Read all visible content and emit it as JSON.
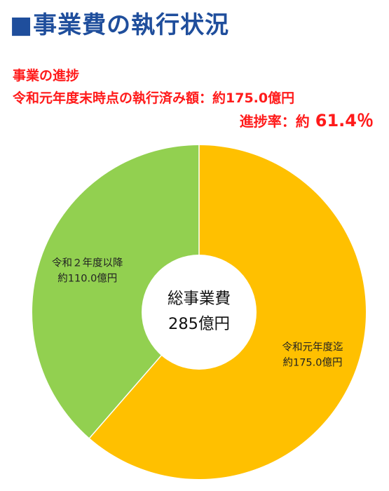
{
  "header": {
    "title": "■事業費の執行状況"
  },
  "progress": {
    "heading": "事業の進捗",
    "executed_line": "令和元年度末時点の執行済み額：約175.0億円",
    "rate_label": "進捗率：約",
    "rate_value": "61.4％"
  },
  "chart_data": {
    "type": "pie",
    "donut": true,
    "center_label": [
      "総事業費",
      "285億円"
    ],
    "total": 285,
    "unit": "億円",
    "slices": [
      {
        "name": "令和元年度迄",
        "value": 175.0,
        "label": "約175.0億円",
        "color": "#ffc000"
      },
      {
        "name": "令和２年度以降",
        "value": 110.0,
        "label": "約110.0億円",
        "color": "#92d050"
      }
    ]
  },
  "colors": {
    "title": "#1f4e9c",
    "progress_text": "#ff1a1a",
    "slice_executed": "#ffc000",
    "slice_remaining": "#92d050"
  }
}
